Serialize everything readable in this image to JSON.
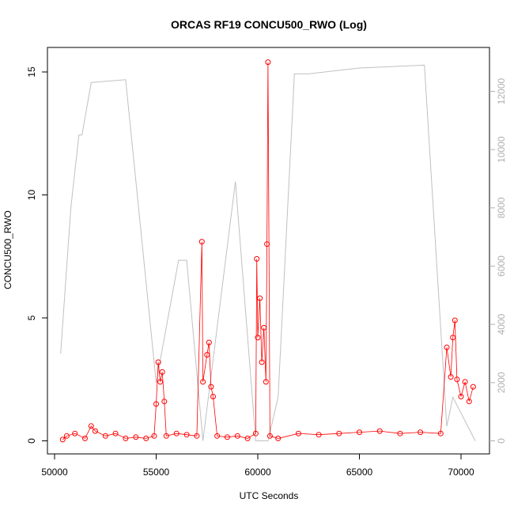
{
  "chart_data": {
    "type": "scatter",
    "title": "ORCAS RF19 CONCU500_RWO (Log)",
    "xlabel": "UTC Seconds",
    "ylabel": "CONCU500_RWO",
    "xlim": [
      50000,
      71000
    ],
    "ylim": [
      0,
      15.5
    ],
    "y2lim": [
      0,
      13000
    ],
    "x_ticks": [
      "50000",
      "55000",
      "60000",
      "65000",
      "70000"
    ],
    "y_ticks": [
      "0",
      "5",
      "10",
      "15"
    ],
    "y2_ticks": [
      "0",
      "2000",
      "4000",
      "6000",
      "8000",
      "10000",
      "12000"
    ],
    "colors": {
      "series": "#ff0000",
      "altitude": "#c0c0c0",
      "axis": "#000000",
      "right_axis": "#b0b0b0"
    },
    "series": [
      {
        "values_sampled": [
          [
            50400,
            0.05
          ],
          [
            50600,
            0.2
          ],
          [
            51000,
            0.3
          ],
          [
            51500,
            0.1
          ],
          [
            51800,
            0.6
          ],
          [
            52000,
            0.4
          ],
          [
            52500,
            0.2
          ],
          [
            53000,
            0.3
          ],
          [
            53500,
            0.1
          ],
          [
            54000,
            0.15
          ],
          [
            54500,
            0.1
          ],
          [
            54900,
            0.2
          ],
          [
            55000,
            1.5
          ],
          [
            55100,
            3.2
          ],
          [
            55200,
            2.4
          ],
          [
            55300,
            2.8
          ],
          [
            55400,
            1.6
          ],
          [
            55500,
            0.2
          ],
          [
            56000,
            0.3
          ],
          [
            56500,
            0.25
          ],
          [
            57000,
            0.2
          ],
          [
            57250,
            8.1
          ],
          [
            57300,
            2.4
          ],
          [
            57500,
            3.5
          ],
          [
            57600,
            4.0
          ],
          [
            57700,
            2.2
          ],
          [
            57800,
            1.8
          ],
          [
            58000,
            0.2
          ],
          [
            58500,
            0.15
          ],
          [
            59000,
            0.2
          ],
          [
            59500,
            0.1
          ],
          [
            59900,
            0.3
          ],
          [
            59950,
            7.4
          ],
          [
            60000,
            4.2
          ],
          [
            60100,
            5.8
          ],
          [
            60200,
            3.2
          ],
          [
            60300,
            4.6
          ],
          [
            60400,
            2.4
          ],
          [
            60450,
            8.0
          ],
          [
            60500,
            15.4
          ],
          [
            60600,
            0.2
          ],
          [
            61000,
            0.1
          ],
          [
            62000,
            0.3
          ],
          [
            63000,
            0.25
          ],
          [
            64000,
            0.3
          ],
          [
            65000,
            0.35
          ],
          [
            66000,
            0.4
          ],
          [
            67000,
            0.3
          ],
          [
            68000,
            0.35
          ],
          [
            69000,
            0.3
          ],
          [
            69300,
            3.8
          ],
          [
            69500,
            2.6
          ],
          [
            69600,
            4.2
          ],
          [
            69700,
            4.9
          ],
          [
            69800,
            2.5
          ],
          [
            70000,
            1.8
          ],
          [
            70200,
            2.4
          ],
          [
            70400,
            1.6
          ],
          [
            70600,
            2.2
          ]
        ]
      }
    ],
    "altitude_right_axis": [
      [
        50300,
        3000
      ],
      [
        50800,
        8000
      ],
      [
        51200,
        10500
      ],
      [
        51350,
        10500
      ],
      [
        51800,
        12300
      ],
      [
        53500,
        12400
      ],
      [
        55000,
        2000
      ],
      [
        56100,
        6200
      ],
      [
        56500,
        6200
      ],
      [
        57300,
        0
      ],
      [
        58900,
        8900
      ],
      [
        59900,
        0
      ],
      [
        60500,
        0
      ],
      [
        61000,
        1500
      ],
      [
        61800,
        12600
      ],
      [
        62500,
        12600
      ],
      [
        65000,
        12800
      ],
      [
        68200,
        12900
      ],
      [
        69300,
        500
      ],
      [
        69600,
        1500
      ],
      [
        70700,
        0
      ]
    ]
  }
}
